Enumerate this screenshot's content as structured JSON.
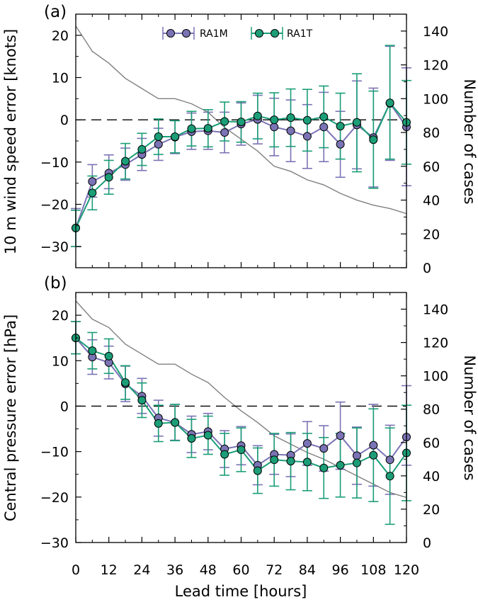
{
  "colors": {
    "ra1m": "#7a73b5",
    "ra1t": "#1b9e77",
    "cases": "#808080",
    "zero_line": "#000000"
  },
  "chart_data": [
    {
      "type": "line",
      "panel_label": "(a)",
      "ylabel": "10 m wind speed error [knots]",
      "y2label": "Number of cases",
      "xlabel": "Lead time [hours]",
      "xlim": [
        0,
        120
      ],
      "ylim": [
        -35,
        25
      ],
      "y2lim": [
        0,
        150
      ],
      "x_ticks": [
        0,
        12,
        24,
        36,
        48,
        60,
        72,
        84,
        96,
        108,
        120
      ],
      "y_ticks": [
        -30,
        -20,
        -10,
        0,
        10,
        20
      ],
      "y2_ticks": [
        0,
        20,
        40,
        60,
        80,
        100,
        120,
        140
      ],
      "legend_position": "top-center",
      "x": [
        0,
        6,
        12,
        18,
        24,
        30,
        36,
        42,
        48,
        54,
        60,
        66,
        72,
        78,
        84,
        90,
        96,
        102,
        108,
        114,
        120
      ],
      "series": [
        {
          "name": "RA1M",
          "color_key": "ra1m",
          "values": [
            -25.6,
            -14.6,
            -12.6,
            -10.6,
            -8.2,
            -5.8,
            -4.1,
            -2.8,
            -2.6,
            -3.0,
            -1.0,
            0.1,
            -1.7,
            -2.6,
            -3.9,
            -1.7,
            -5.8,
            -1.2,
            -4.2,
            3.9,
            -1.7
          ],
          "err_low": [
            -30.0,
            -18.3,
            -16.3,
            -14.3,
            -12.0,
            -9.6,
            -8.0,
            -7.0,
            -7.0,
            -7.8,
            -6.0,
            -5.7,
            -8.5,
            -9.9,
            -11.5,
            -9.9,
            -13.6,
            -11.6,
            -15.9,
            -9.6,
            -15.6
          ],
          "err_high": [
            -21.0,
            -10.6,
            -8.3,
            -6.7,
            -4.4,
            -2.0,
            -0.2,
            1.6,
            1.8,
            1.8,
            4.0,
            5.8,
            5.1,
            4.7,
            3.6,
            6.5,
            2.0,
            9.2,
            7.5,
            17.4,
            12.3
          ]
        },
        {
          "name": "RA1T",
          "color_key": "ra1t",
          "values": [
            -25.6,
            -17.3,
            -13.6,
            -9.8,
            -7.0,
            -4.0,
            -4.0,
            -2.1,
            -2.0,
            -0.4,
            -0.5,
            0.9,
            0.0,
            0.5,
            -0.1,
            0.7,
            -1.5,
            -0.6,
            -4.7,
            4.0,
            -0.6
          ],
          "err_low": [
            -30.0,
            -21.3,
            -17.6,
            -14.0,
            -10.8,
            -8.2,
            -7.8,
            -6.2,
            -6.4,
            -5.0,
            -5.3,
            -4.5,
            -6.4,
            -6.3,
            -7.4,
            -6.6,
            -9.3,
            -12.3,
            -16.2,
            -9.3,
            -10.5
          ],
          "err_high": [
            -21.4,
            -13.3,
            -9.6,
            -5.6,
            -3.2,
            0.2,
            -0.2,
            2.0,
            2.4,
            4.2,
            4.3,
            6.3,
            6.4,
            7.3,
            7.2,
            8.0,
            6.3,
            10.9,
            6.8,
            17.6,
            9.3
          ]
        }
      ],
      "cases": {
        "x": [
          0,
          6,
          12,
          18,
          24,
          30,
          36,
          42,
          48,
          54,
          60,
          66,
          72,
          78,
          84,
          90,
          96,
          102,
          108,
          114,
          120
        ],
        "values": [
          143,
          128,
          121,
          112,
          106,
          100,
          100,
          97,
          92,
          83,
          76,
          69,
          60,
          57,
          52,
          49,
          44,
          40,
          37,
          35,
          32
        ]
      }
    },
    {
      "type": "line",
      "panel_label": "(b)",
      "ylabel": "Central pressure error [hPa]",
      "y2label": "Number of cases",
      "xlabel": "Lead time [hours]",
      "xlim": [
        0,
        120
      ],
      "ylim": [
        -30,
        25
      ],
      "y2lim": [
        0,
        150
      ],
      "x_ticks": [
        0,
        12,
        24,
        36,
        48,
        60,
        72,
        84,
        96,
        108,
        120
      ],
      "y_ticks": [
        -30,
        -20,
        -10,
        0,
        10,
        20
      ],
      "y2_ticks": [
        0,
        20,
        40,
        60,
        80,
        100,
        120,
        140
      ],
      "x": [
        0,
        6,
        12,
        18,
        24,
        30,
        36,
        42,
        48,
        54,
        60,
        66,
        72,
        78,
        84,
        90,
        96,
        102,
        108,
        114,
        120
      ],
      "series": [
        {
          "name": "RA1M",
          "color_key": "ra1m",
          "values": [
            15.0,
            10.8,
            9.6,
            4.9,
            2.2,
            -2.6,
            -3.6,
            -6.2,
            -5.6,
            -9.4,
            -8.7,
            -13.0,
            -10.6,
            -10.8,
            -8.2,
            -9.3,
            -6.5,
            -10.9,
            -8.6,
            -11.8,
            -6.8
          ],
          "err_low": [
            11.5,
            7.0,
            6.0,
            1.0,
            -1.6,
            -6.6,
            -7.5,
            -10.2,
            -9.6,
            -13.5,
            -12.9,
            -17.3,
            -15.0,
            -15.5,
            -13.0,
            -14.3,
            -13.9,
            -17.2,
            -17.6,
            -19.4,
            -13.0
          ],
          "err_high": [
            18.6,
            14.6,
            13.2,
            8.8,
            6.1,
            1.3,
            0.4,
            -2.2,
            -1.6,
            -5.4,
            -4.5,
            -8.7,
            -6.2,
            -6.1,
            -3.4,
            -4.3,
            0.9,
            -4.6,
            0.4,
            -4.2,
            4.5
          ]
        },
        {
          "name": "RA1T",
          "color_key": "ra1t",
          "values": [
            15.0,
            12.2,
            11.0,
            5.2,
            1.3,
            -3.8,
            -3.6,
            -7.1,
            -6.4,
            -10.6,
            -9.6,
            -14.2,
            -11.8,
            -12.1,
            -12.3,
            -13.6,
            -13.0,
            -12.5,
            -10.8,
            -15.4,
            -10.3
          ],
          "err_low": [
            11.5,
            8.2,
            7.2,
            1.5,
            -2.5,
            -7.8,
            -7.6,
            -11.3,
            -10.6,
            -15.2,
            -14.4,
            -19.2,
            -17.6,
            -18.4,
            -18.6,
            -20.3,
            -20.0,
            -20.2,
            -21.0,
            -26.0,
            -20.8
          ],
          "err_high": [
            18.6,
            16.2,
            14.8,
            8.9,
            5.1,
            0.2,
            0.4,
            -2.9,
            -2.2,
            -6.0,
            -4.8,
            -9.2,
            -6.0,
            -5.8,
            -6.0,
            -6.9,
            -6.0,
            -4.8,
            -0.6,
            -4.8,
            0.2
          ]
        }
      ],
      "cases": {
        "x": [
          0,
          6,
          12,
          18,
          24,
          30,
          36,
          42,
          48,
          54,
          60,
          66,
          72,
          78,
          84,
          90,
          96,
          102,
          108,
          114,
          120
        ],
        "values": [
          145,
          134,
          129,
          119,
          113,
          107,
          107,
          101,
          96,
          87,
          79,
          72,
          64,
          59,
          54,
          50,
          45,
          40,
          35,
          30,
          27
        ]
      }
    }
  ]
}
